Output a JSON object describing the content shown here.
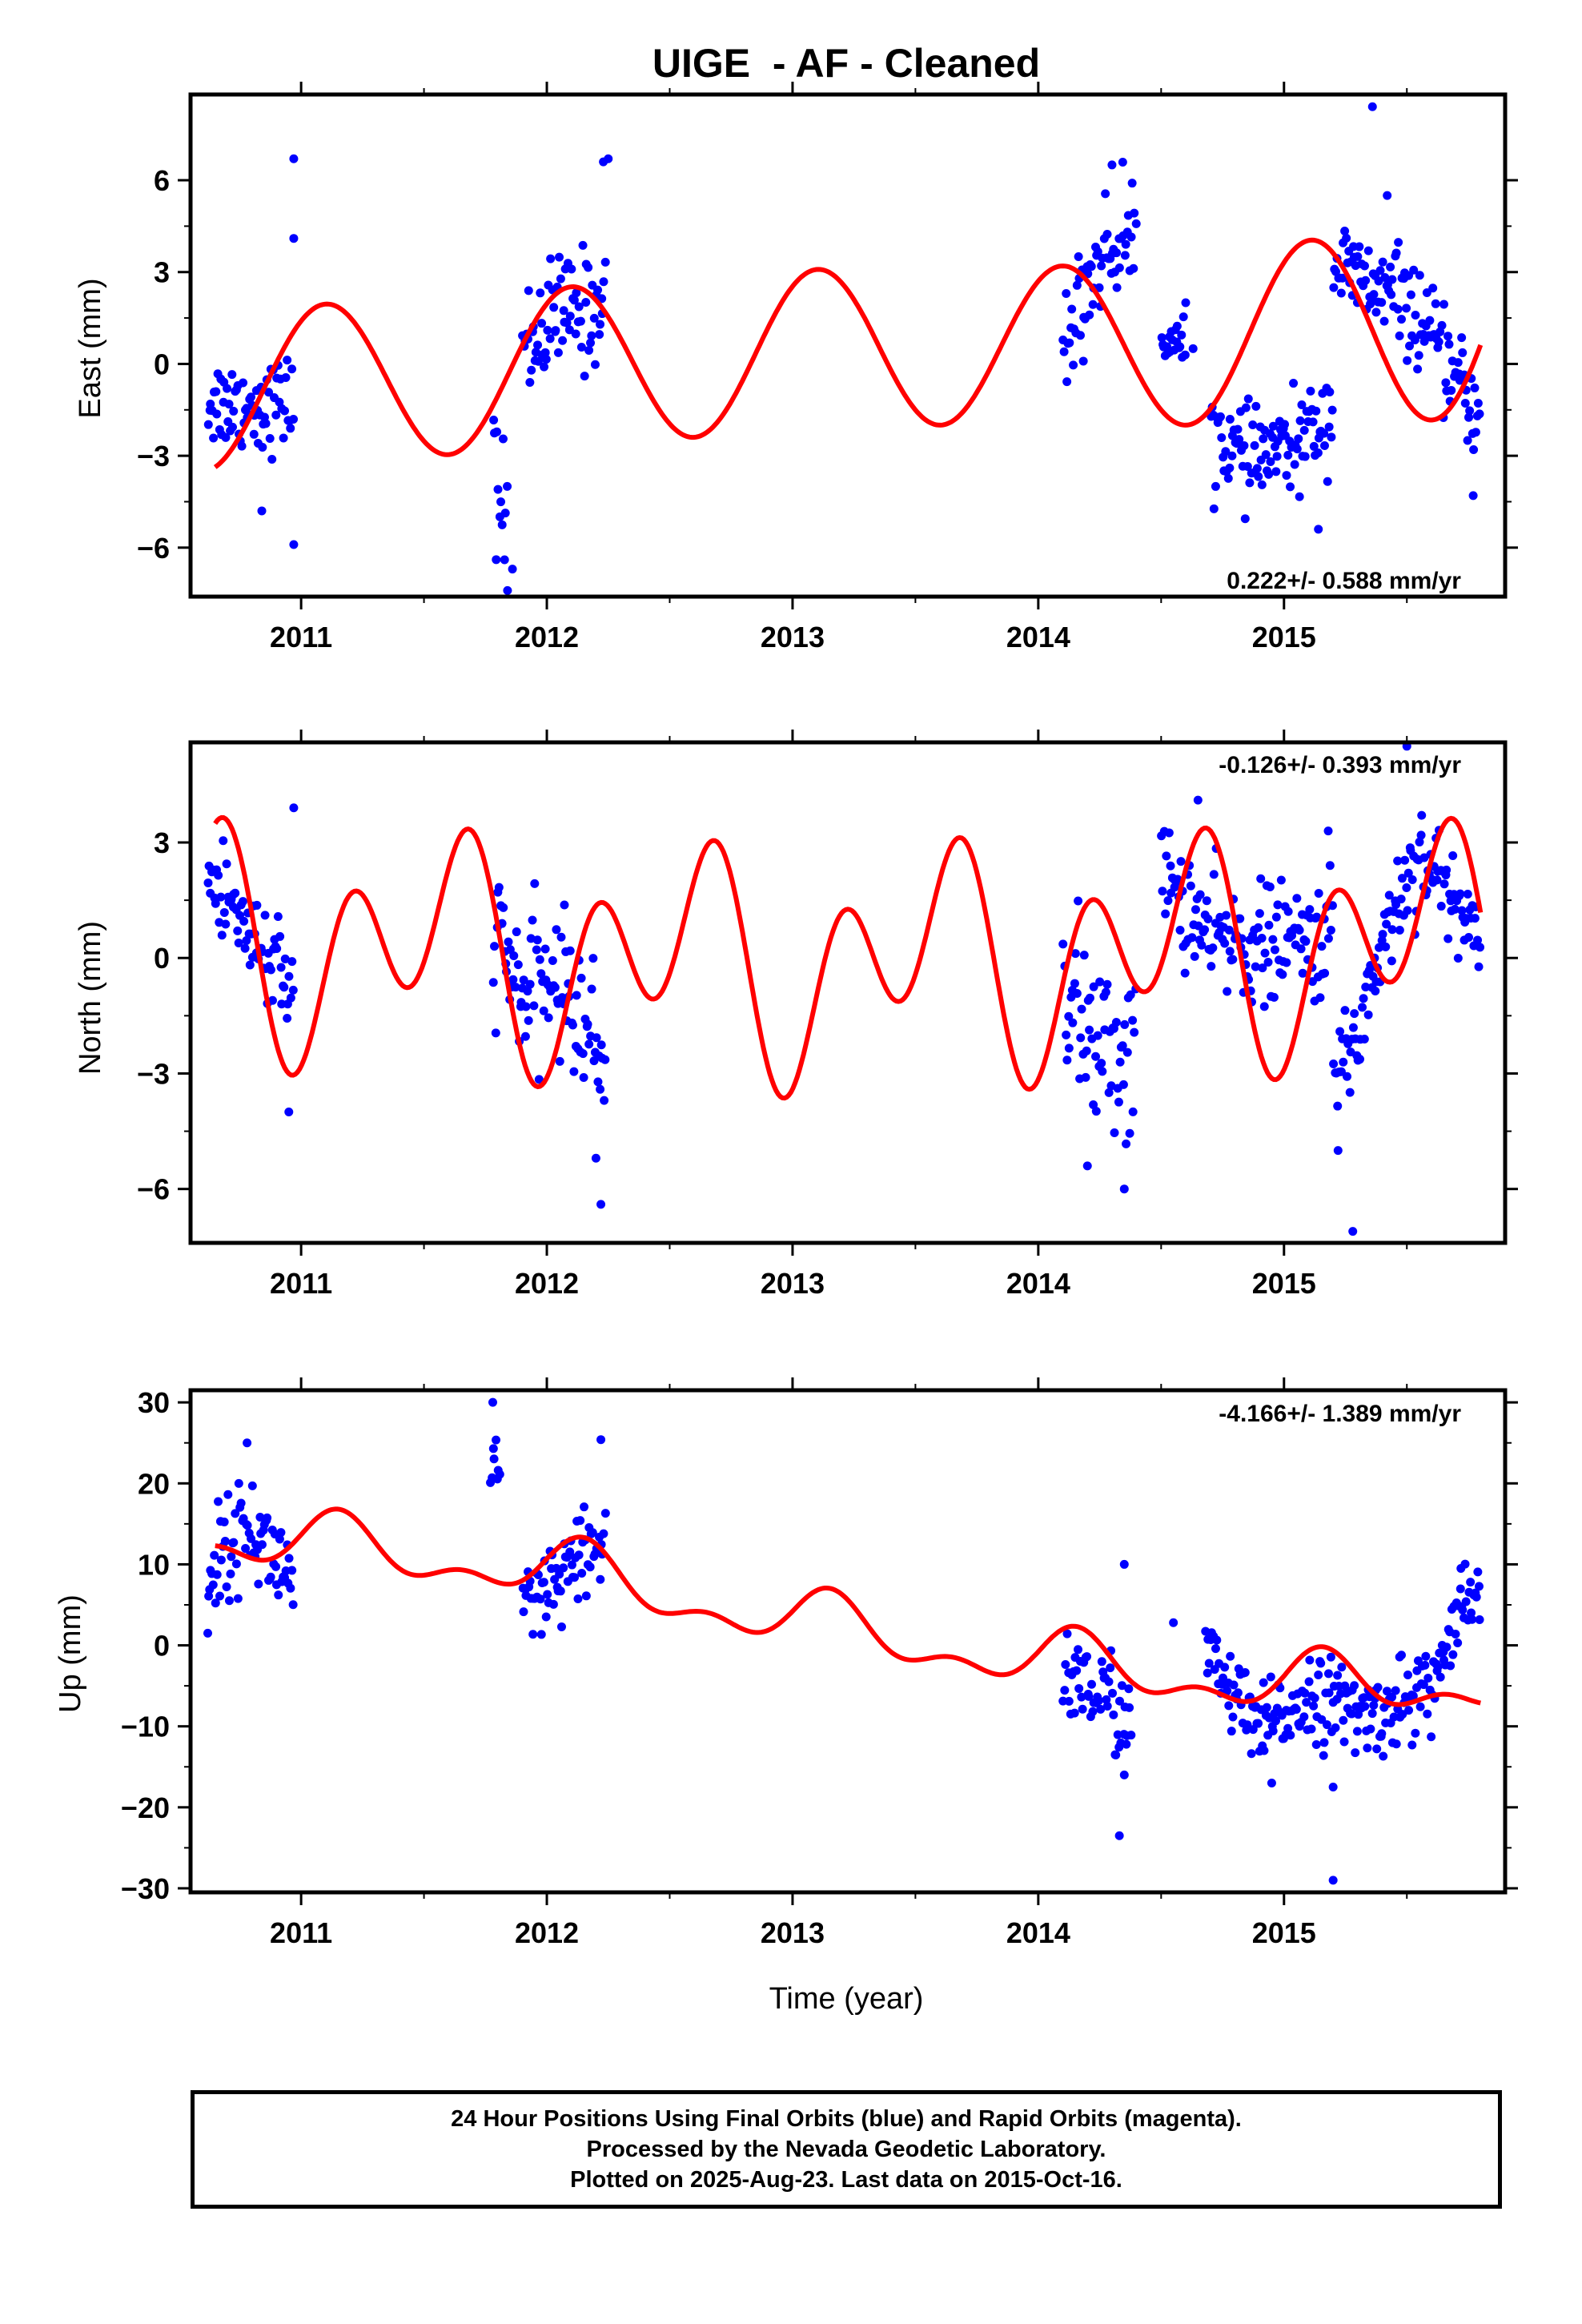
{
  "chart_data": {
    "type": "scatter",
    "title": "UIGE  - AF - Cleaned",
    "xlabel": "Time (year)",
    "x_tick_labels": [
      "2011",
      "2012",
      "2013",
      "2014",
      "2015"
    ],
    "xlim": [
      2010.55,
      2015.9
    ],
    "data_gaps": [
      [
        2011.0,
        2011.75
      ],
      [
        2012.3,
        2014.05
      ]
    ],
    "legend": "none",
    "colors": {
      "final_orbits": "#0000ff",
      "rapid_orbits": "#ff00ff",
      "model_fit": "#ff0000",
      "frame": "#000000"
    },
    "panels": [
      {
        "component": "East",
        "ylabel": "East (mm)",
        "ylim": [
          -7.6,
          8.8
        ],
        "yticks": [
          6,
          3,
          0,
          -3,
          -6
        ],
        "ytick_labels": [
          "6",
          "3",
          "0",
          "−3",
          "−6"
        ],
        "rate_label": "0.222+/- 0.588 mm/yr",
        "rate_position": "bottom-right",
        "series": [
          {
            "name": "24 Hour Positions",
            "style": "blue dots",
            "segments": [
              {
                "x_start": 2010.62,
                "x_end": 2010.97,
                "center": [
                  [
                    2010.62,
                    -1.2
                  ],
                  [
                    2010.8,
                    -1.4
                  ],
                  [
                    2010.97,
                    -1.2
                  ]
                ],
                "spread": 1.0
              },
              {
                "x_start": 2011.78,
                "x_end": 2011.84,
                "center": [
                  [
                    2011.78,
                    -3.5
                  ],
                  [
                    2011.84,
                    -5.0
                  ]
                ],
                "spread": 1.5
              },
              {
                "x_start": 2011.9,
                "x_end": 2012.24,
                "center": [
                  [
                    2011.9,
                    0.6
                  ],
                  [
                    2012.05,
                    1.6
                  ],
                  [
                    2012.24,
                    1.9
                  ]
                ],
                "spread": 1.3
              },
              {
                "x_start": 2014.1,
                "x_end": 2014.4,
                "center": [
                  [
                    2014.1,
                    0.5
                  ],
                  [
                    2014.25,
                    3.5
                  ],
                  [
                    2014.4,
                    4.3
                  ]
                ],
                "spread": 1.2
              },
              {
                "x_start": 2014.5,
                "x_end": 2014.6,
                "center": [
                  [
                    2014.5,
                    1.0
                  ],
                  [
                    2014.6,
                    0.5
                  ]
                ],
                "spread": 0.5
              },
              {
                "x_start": 2014.7,
                "x_end": 2015.0,
                "center": [
                  [
                    2014.7,
                    -2.0
                  ],
                  [
                    2014.85,
                    -3.2
                  ],
                  [
                    2015.0,
                    -2.7
                  ]
                ],
                "spread": 1.0
              },
              {
                "x_start": 2015.0,
                "x_end": 2015.2,
                "center": [
                  [
                    2015.0,
                    -3.0
                  ],
                  [
                    2015.2,
                    -1.5
                  ]
                ],
                "spread": 1.0
              },
              {
                "x_start": 2015.2,
                "x_end": 2015.45,
                "center": [
                  [
                    2015.2,
                    3.3
                  ],
                  [
                    2015.35,
                    2.5
                  ],
                  [
                    2015.45,
                    2.2
                  ]
                ],
                "spread": 1.0
              },
              {
                "x_start": 2015.45,
                "x_end": 2015.8,
                "center": [
                  [
                    2015.45,
                    2.5
                  ],
                  [
                    2015.6,
                    0.8
                  ],
                  [
                    2015.8,
                    -1.8
                  ]
                ],
                "spread": 1.0
              }
            ],
            "outliers": [
              [
                2010.97,
                6.7
              ],
              [
                2010.97,
                4.1
              ],
              [
                2010.97,
                -5.9
              ],
              [
                2010.84,
                -4.8
              ],
              [
                2011.84,
                -7.4
              ],
              [
                2011.86,
                -6.7
              ],
              [
                2012.25,
                6.7
              ],
              [
                2012.23,
                6.6
              ],
              [
                2014.3,
                6.5
              ],
              [
                2014.6,
                2.0
              ],
              [
                2014.63,
                0.5
              ],
              [
                2015.36,
                8.4
              ],
              [
                2015.42,
                5.5
              ],
              [
                2015.77,
                -4.3
              ],
              [
                2015.14,
                -5.4
              ]
            ]
          }
        ],
        "model_fit": {
          "style": "red line",
          "mean": [
            [
              2010.65,
              -0.9
            ],
            [
              2013.3,
              0.6
            ],
            [
              2014.6,
              0.6
            ],
            [
              2015.8,
              1.7
            ]
          ],
          "annual": [
            [
              2010.65,
              2.6
            ],
            [
              2014.6,
              2.6
            ],
            [
              2015.8,
              3.5
            ]
          ],
          "annual_phase_yr": 0.1,
          "semiannual": 0.0,
          "semiannual_phase_yr": 0.0
        }
      },
      {
        "component": "North",
        "ylabel": "North (mm)",
        "ylim": [
          -7.4,
          5.6
        ],
        "yticks": [
          3,
          0,
          -3,
          -6
        ],
        "ytick_labels": [
          "3",
          "0",
          "−3",
          "−6"
        ],
        "rate_label": "-0.126+/- 0.393 mm/yr",
        "rate_position": "top-right",
        "series": [
          {
            "name": "24 Hour Positions",
            "style": "blue dots",
            "segments": [
              {
                "x_start": 2010.62,
                "x_end": 2010.97,
                "center": [
                  [
                    2010.62,
                    2.0
                  ],
                  [
                    2010.75,
                    1.2
                  ],
                  [
                    2010.97,
                    -1.2
                  ]
                ],
                "spread": 1.0
              },
              {
                "x_start": 2011.78,
                "x_end": 2012.24,
                "center": [
                  [
                    2011.78,
                    0.8
                  ],
                  [
                    2011.9,
                    -1.0
                  ],
                  [
                    2012.05,
                    -0.5
                  ],
                  [
                    2012.24,
                    -2.8
                  ]
                ],
                "spread": 1.2
              },
              {
                "x_start": 2014.1,
                "x_end": 2014.4,
                "center": [
                  [
                    2014.1,
                    -0.5
                  ],
                  [
                    2014.25,
                    -2.5
                  ],
                  [
                    2014.4,
                    -2.5
                  ]
                ],
                "spread": 1.5
              },
              {
                "x_start": 2014.5,
                "x_end": 2015.2,
                "center": [
                  [
                    2014.5,
                    2.3
                  ],
                  [
                    2014.7,
                    0.5
                  ],
                  [
                    2014.9,
                    0.3
                  ],
                  [
                    2015.2,
                    0.5
                  ]
                ],
                "spread": 1.0
              },
              {
                "x_start": 2015.2,
                "x_end": 2015.8,
                "center": [
                  [
                    2015.2,
                    -3.0
                  ],
                  [
                    2015.3,
                    -2.0
                  ],
                  [
                    2015.4,
                    0.5
                  ],
                  [
                    2015.55,
                    2.8
                  ],
                  [
                    2015.8,
                    0.5
                  ]
                ],
                "spread": 0.9
              }
            ],
            "outliers": [
              [
                2010.97,
                3.9
              ],
              [
                2010.95,
                -4.0
              ],
              [
                2012.22,
                -6.4
              ],
              [
                2012.2,
                -5.2
              ],
              [
                2014.35,
                -6.0
              ],
              [
                2014.2,
                -5.4
              ],
              [
                2015.28,
                -7.1
              ],
              [
                2015.22,
                -5.0
              ],
              [
                2015.5,
                5.5
              ],
              [
                2015.18,
                3.3
              ],
              [
                2014.65,
                4.1
              ]
            ]
          }
        ],
        "model_fit": {
          "style": "red line",
          "mean": [
            [
              2010.65,
              0.5
            ],
            [
              2013.0,
              -0.2
            ],
            [
              2015.8,
              0.5
            ]
          ],
          "annual": 1.5,
          "annual_phase_yr": 0.55,
          "semiannual": 2.2,
          "semiannual_phase_yr": 0.2
        }
      },
      {
        "component": "Up",
        "ylabel": "Up (mm)",
        "ylim": [
          -30.5,
          31.5
        ],
        "yticks": [
          30,
          20,
          10,
          0,
          -10,
          -20,
          -30
        ],
        "ytick_labels": [
          "30",
          "20",
          "10",
          "0",
          "−10",
          "−20",
          "−30"
        ],
        "rate_label": "-4.166+/- 1.389 mm/yr",
        "rate_position": "top-right",
        "series": [
          {
            "name": "24 Hour Positions",
            "style": "blue dots",
            "segments": [
              {
                "x_start": 2010.62,
                "x_end": 2010.97,
                "center": [
                  [
                    2010.62,
                    9.0
                  ],
                  [
                    2010.78,
                    15.0
                  ],
                  [
                    2010.97,
                    8.0
                  ]
                ],
                "spread": 4.0
              },
              {
                "x_start": 2011.77,
                "x_end": 2011.81,
                "center": [
                  [
                    2011.77,
                    23.0
                  ],
                  [
                    2011.81,
                    21.0
                  ]
                ],
                "spread": 4.0
              },
              {
                "x_start": 2011.9,
                "x_end": 2012.24,
                "center": [
                  [
                    2011.9,
                    3.0
                  ],
                  [
                    2012.0,
                    6.0
                  ],
                  [
                    2012.24,
                    13.0
                  ]
                ],
                "spread": 4.0
              },
              {
                "x_start": 2014.1,
                "x_end": 2014.38,
                "center": [
                  [
                    2014.1,
                    -3.0
                  ],
                  [
                    2014.25,
                    -6.0
                  ],
                  [
                    2014.38,
                    -9.0
                  ]
                ],
                "spread": 4.0
              },
              {
                "x_start": 2014.68,
                "x_end": 2015.8,
                "center": [
                  [
                    2014.68,
                    -1.0
                  ],
                  [
                    2014.9,
                    -11.0
                  ],
                  [
                    2015.1,
                    -6.0
                  ],
                  [
                    2015.35,
                    -9.0
                  ],
                  [
                    2015.6,
                    -5.0
                  ],
                  [
                    2015.75,
                    5.0
                  ],
                  [
                    2015.8,
                    6.0
                  ]
                ],
                "spread": 3.5
              }
            ],
            "outliers": [
              [
                2011.78,
                30.0
              ],
              [
                2012.22,
                25.4
              ],
              [
                2010.78,
                25.0
              ],
              [
                2014.33,
                -23.5
              ],
              [
                2015.2,
                -29.0
              ],
              [
                2014.35,
                10.0
              ],
              [
                2014.55,
                2.8
              ],
              [
                2014.35,
                -16.0
              ],
              [
                2014.95,
                -17.0
              ],
              [
                2015.2,
                -17.5
              ],
              [
                2015.72,
                9.5
              ],
              [
                2010.62,
                1.5
              ]
            ]
          }
        ],
        "model_fit": {
          "style": "red line",
          "mean": [
            [
              2010.65,
              13.5
            ],
            [
              2012.0,
              9.5
            ],
            [
              2013.0,
              3.0
            ],
            [
              2014.0,
              -2.0
            ],
            [
              2015.0,
              -5.0
            ],
            [
              2015.8,
              -4.8
            ]
          ],
          "annual": 3.0,
          "annual_phase_yr": 0.15,
          "semiannual": 1.8,
          "semiannual_phase_yr": 0.15
        }
      }
    ]
  },
  "footer": {
    "line1": "24 Hour Positions Using Final Orbits (blue) and Rapid Orbits (magenta).",
    "line2": "Processed by the Nevada Geodetic Laboratory.",
    "line3": "Plotted on 2025-Aug-23. Last data on 2015-Oct-16."
  }
}
